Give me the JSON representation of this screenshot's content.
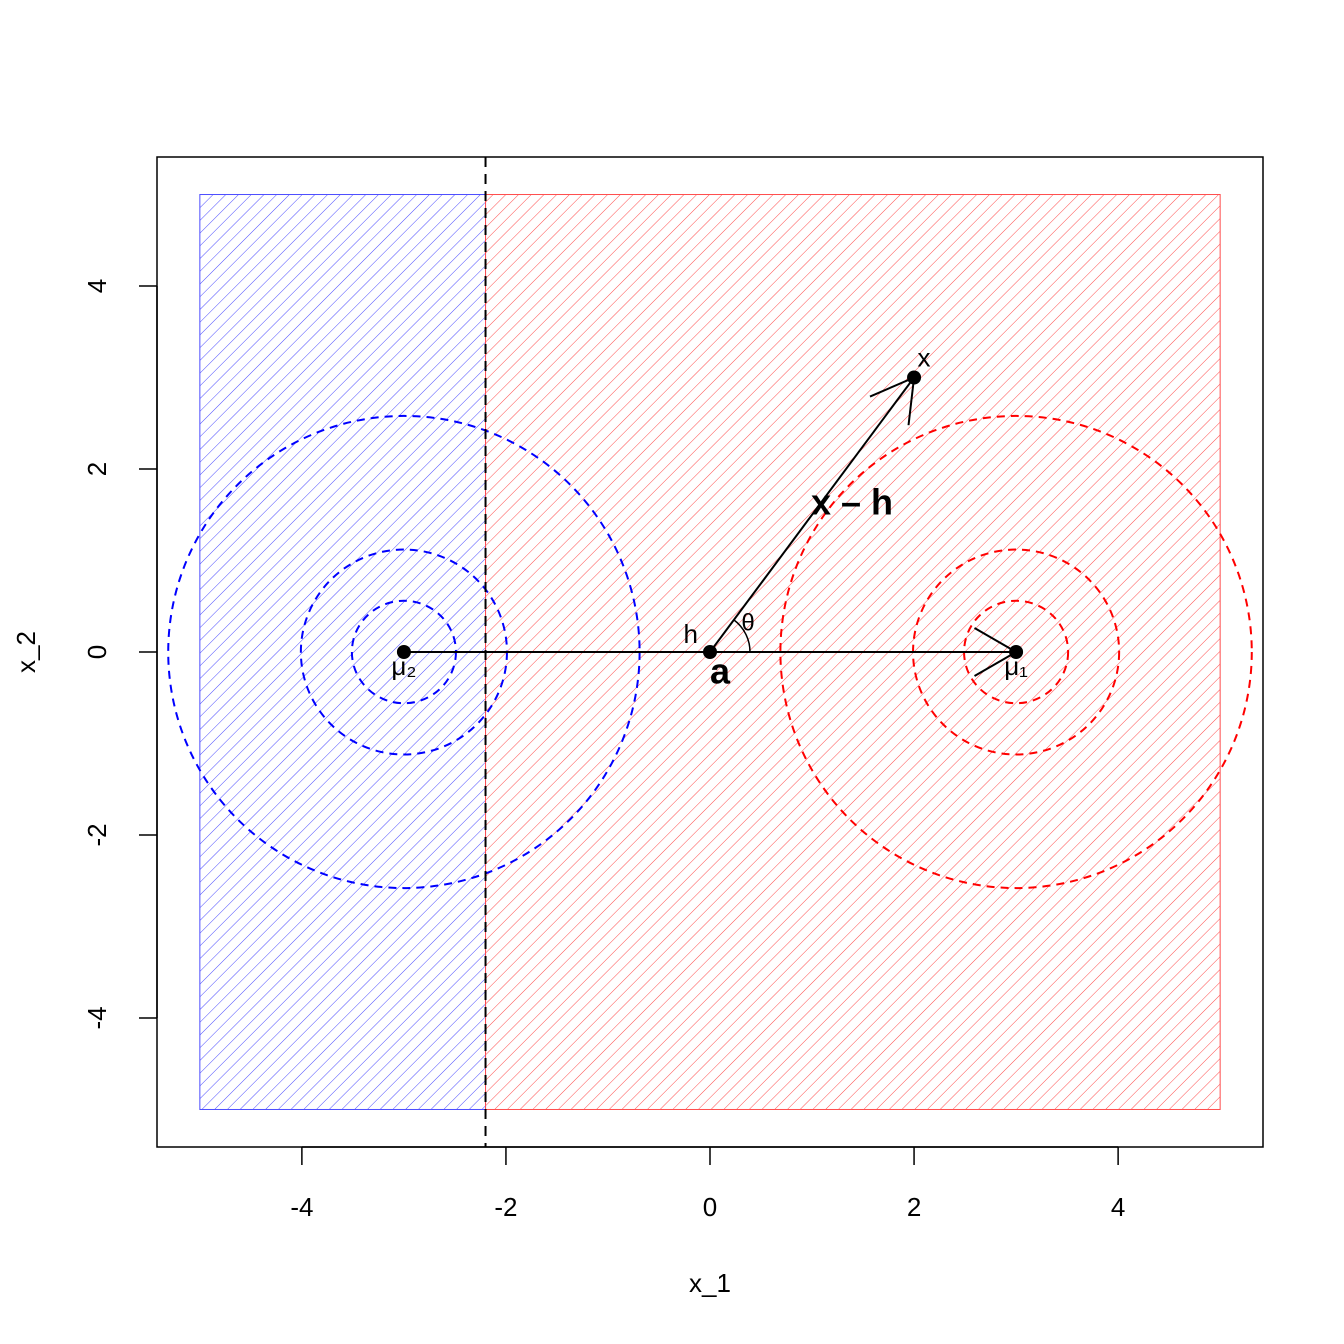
{
  "chart_data": {
    "type": "scatter",
    "xlabel": "x_1",
    "ylabel": "x_2",
    "xlim": [
      -5.42,
      5.42
    ],
    "ylim": [
      -5.41,
      5.41
    ],
    "xticks": [
      -4,
      -2,
      0,
      2,
      4
    ],
    "yticks": [
      -4,
      -2,
      0,
      2,
      4
    ],
    "regions": [
      {
        "color": "#4d4dff",
        "x": [
          -5,
          -2.2
        ],
        "y": [
          -5,
          5
        ]
      },
      {
        "color": "#ff4d4d",
        "x": [
          -2.2,
          5
        ],
        "y": [
          -5,
          5
        ]
      }
    ],
    "boundary_x": -2.2,
    "contours": [
      {
        "color": "#0000ff",
        "center": [
          -3,
          0
        ],
        "radii": [
          [
            0.51,
            0.56
          ],
          [
            1.01,
            1.12
          ],
          [
            2.31,
            2.58
          ]
        ]
      },
      {
        "color": "#ff0000",
        "center": [
          3,
          0
        ],
        "radii": [
          [
            0.51,
            0.56
          ],
          [
            1.01,
            1.12
          ],
          [
            2.31,
            2.58
          ]
        ]
      }
    ],
    "points": {
      "x": [
        -3,
        0,
        2,
        3
      ],
      "y": [
        0,
        0,
        3,
        0
      ],
      "labels": [
        "μ₂",
        "h",
        "x",
        "μ₁"
      ]
    },
    "annotations": [
      "a",
      "x – h",
      "θ"
    ]
  }
}
